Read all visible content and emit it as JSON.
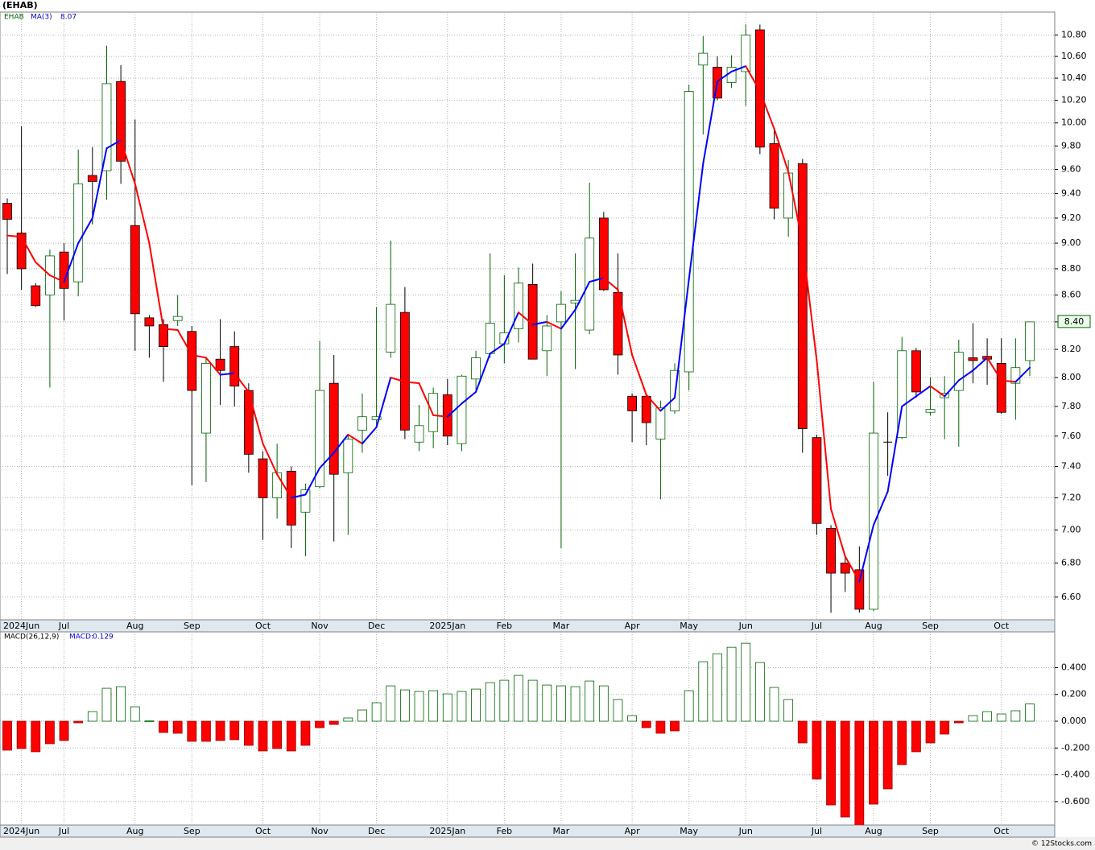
{
  "chart_data": [
    {
      "type": "candlestick",
      "title": "(EHAB)",
      "name": "EHAB",
      "categories": [
        null,
        "2024Jun",
        null,
        null,
        "Jul",
        null,
        null,
        null,
        null,
        "Aug",
        null,
        null,
        null,
        "Sep",
        null,
        null,
        null,
        null,
        "Oct",
        null,
        null,
        null,
        "Nov",
        null,
        null,
        null,
        "Dec",
        null,
        null,
        null,
        null,
        "2025Jan",
        null,
        null,
        null,
        "Feb",
        null,
        null,
        null,
        "Mar",
        null,
        null,
        null,
        null,
        "Apr",
        null,
        null,
        null,
        "May",
        null,
        null,
        null,
        "Jun",
        null,
        null,
        null,
        null,
        "Jul",
        null,
        null,
        null,
        "Aug",
        null,
        null,
        null,
        "Sep",
        null,
        null,
        null,
        null,
        "Oct",
        null,
        null
      ],
      "open": [
        9.32,
        9.08,
        8.67,
        8.6,
        8.93,
        8.7,
        9.55,
        9.59,
        10.37,
        9.14,
        8.43,
        8.38,
        8.41,
        8.33,
        7.62,
        8.13,
        8.22,
        7.91,
        7.45,
        7.2,
        7.37,
        7.11,
        7.27,
        7.96,
        7.36,
        7.64,
        7.71,
        8.18,
        8.47,
        7.56,
        7.63,
        7.88,
        7.55,
        7.99,
        8.17,
        8.24,
        8.35,
        8.68,
        8.19,
        8.4,
        8.54,
        8.34,
        9.2,
        8.62,
        7.87,
        7.87,
        7.58,
        7.77,
        8.04,
        10.52,
        10.5,
        10.36,
        10.46,
        10.85,
        9.82,
        9.2,
        9.65,
        7.59,
        7.01,
        6.8,
        6.76,
        6.53,
        7.56,
        7.59,
        8.19,
        7.76,
        7.86,
        7.91,
        8.14,
        8.15,
        8.1,
        7.96,
        8.12
      ],
      "high": [
        9.36,
        9.97,
        8.69,
        8.95,
        9.0,
        9.77,
        9.79,
        10.7,
        10.52,
        10.03,
        8.45,
        8.42,
        8.6,
        8.37,
        8.14,
        8.42,
        8.33,
        7.96,
        7.5,
        7.55,
        7.4,
        7.29,
        8.26,
        8.16,
        7.61,
        7.89,
        8.51,
        9.02,
        8.66,
        7.81,
        7.93,
        7.99,
        8.02,
        8.19,
        8.92,
        8.75,
        8.81,
        8.84,
        8.45,
        8.63,
        8.92,
        9.49,
        9.25,
        8.92,
        7.89,
        7.89,
        7.84,
        8.1,
        10.34,
        10.79,
        10.6,
        10.61,
        10.9,
        10.9,
        9.95,
        9.68,
        9.69,
        7.61,
        7.03,
        6.84,
        6.9,
        7.97,
        7.76,
        8.29,
        8.21,
        8.0,
        8.01,
        8.27,
        8.39,
        8.28,
        8.28,
        8.28,
        8.4
      ],
      "low": [
        8.76,
        8.64,
        8.51,
        7.93,
        8.41,
        8.59,
        9.15,
        9.35,
        9.48,
        8.19,
        8.14,
        7.97,
        8.37,
        7.28,
        7.3,
        7.81,
        7.8,
        7.36,
        6.94,
        7.07,
        6.89,
        6.84,
        7.26,
        6.93,
        6.97,
        7.49,
        7.66,
        8.14,
        7.58,
        7.5,
        7.52,
        7.54,
        7.5,
        7.9,
        8.14,
        8.1,
        8.25,
        8.13,
        8.01,
        6.89,
        8.06,
        8.31,
        8.63,
        8.02,
        7.56,
        7.54,
        7.19,
        7.75,
        7.91,
        9.9,
        10.2,
        10.31,
        10.15,
        9.73,
        9.19,
        9.05,
        7.49,
        6.97,
        6.51,
        6.63,
        6.51,
        6.52,
        7.34,
        7.58,
        7.86,
        7.74,
        7.58,
        7.53,
        7.96,
        7.95,
        7.75,
        7.71,
        8.01
      ],
      "close": [
        9.19,
        8.8,
        8.52,
        8.9,
        8.65,
        9.48,
        9.5,
        10.35,
        9.67,
        8.46,
        8.37,
        8.22,
        8.44,
        7.91,
        8.1,
        8.05,
        7.94,
        7.48,
        7.2,
        7.36,
        7.03,
        7.25,
        7.91,
        7.35,
        7.58,
        7.73,
        7.73,
        8.53,
        7.64,
        7.67,
        7.89,
        7.6,
        8.01,
        8.14,
        8.39,
        8.32,
        8.69,
        8.13,
        8.37,
        8.53,
        8.56,
        9.04,
        8.64,
        8.16,
        7.77,
        7.69,
        7.79,
        8.05,
        10.28,
        10.63,
        10.22,
        10.5,
        10.8,
        9.79,
        9.28,
        9.57,
        7.65,
        7.04,
        6.74,
        6.74,
        6.53,
        7.62,
        7.56,
        8.19,
        7.9,
        7.78,
        7.89,
        8.18,
        8.12,
        8.13,
        7.76,
        8.07,
        8.4
      ],
      "price_label": "8.40",
      "up_color": "#006400",
      "down_color": "#ff0000",
      "flat_color": "#000000",
      "ma": {
        "name": "MA(3)",
        "up_color": "#0000ff",
        "down_color": "#ff0000",
        "values": [
          9.06,
          9.05,
          8.85,
          8.75,
          8.7,
          9.0,
          9.2,
          9.78,
          9.85,
          9.48,
          9.0,
          8.35,
          8.34,
          8.16,
          8.14,
          8.02,
          8.03,
          7.9,
          7.55,
          7.35,
          7.2,
          7.22,
          7.39,
          7.49,
          7.61,
          7.55,
          7.66,
          8.0,
          7.97,
          7.96,
          7.74,
          7.73,
          7.82,
          7.9,
          8.17,
          8.24,
          8.47,
          8.38,
          8.4,
          8.35,
          8.49,
          8.7,
          8.73,
          8.64,
          8.16,
          7.88,
          7.77,
          7.86,
          8.72,
          9.65,
          10.37,
          10.46,
          10.51,
          10.28,
          9.95,
          9.58,
          9.0,
          8.12,
          7.13,
          6.84,
          6.69,
          7.03,
          7.24,
          7.8,
          7.87,
          7.94,
          7.87,
          7.98,
          8.05,
          8.14,
          7.98,
          7.97,
          8.07
        ]
      },
      "log": true,
      "grid": true,
      "ylim": [
        6.47,
        11.02
      ],
      "yticks": [
        {
          "value": 6.6,
          "label": "6.60"
        },
        {
          "value": 6.8,
          "label": "6.80"
        },
        {
          "value": 7,
          "label": "7.00"
        },
        {
          "value": 7.2,
          "label": "7.20"
        },
        {
          "value": 7.4,
          "label": "7.40"
        },
        {
          "value": 7.6,
          "label": "7.60"
        },
        {
          "value": 7.8,
          "label": "7.80"
        },
        {
          "value": 8,
          "label": "8.00"
        },
        {
          "value": 8.2,
          "label": "8.20"
        },
        {
          "value": 8.4,
          "label": "8.40"
        },
        {
          "value": 8.6,
          "label": "8.60"
        },
        {
          "value": 8.8,
          "label": "8.80"
        },
        {
          "value": 9,
          "label": "9.00"
        },
        {
          "value": 9.2,
          "label": "9.20"
        },
        {
          "value": 9.4,
          "label": "9.40"
        },
        {
          "value": 9.6,
          "label": "9.60"
        },
        {
          "value": 9.8,
          "label": "9.80"
        },
        {
          "value": 10,
          "label": "10.00"
        },
        {
          "value": 10.2,
          "label": "10.20"
        },
        {
          "value": 10.4,
          "label": "10.40"
        },
        {
          "value": 10.6,
          "label": "10.60"
        },
        {
          "value": 10.8,
          "label": "10.80"
        }
      ]
    },
    {
      "type": "bar",
      "name": "MACD(26,12,9)",
      "value_name": "MACD:",
      "categories": [
        null,
        "2024Jun",
        null,
        null,
        "Jul",
        null,
        null,
        null,
        null,
        "Aug",
        null,
        null,
        null,
        "Sep",
        null,
        null,
        null,
        null,
        "Oct",
        null,
        null,
        null,
        "Nov",
        null,
        null,
        null,
        "Dec",
        null,
        null,
        null,
        null,
        "2025Jan",
        null,
        null,
        null,
        "Feb",
        null,
        null,
        null,
        "Mar",
        null,
        null,
        null,
        null,
        "Apr",
        null,
        null,
        null,
        "May",
        null,
        null,
        null,
        "Jun",
        null,
        null,
        null,
        null,
        "Jul",
        null,
        null,
        null,
        "Aug",
        null,
        null,
        null,
        "Sep",
        null,
        null,
        null,
        null,
        "Oct",
        null,
        null
      ],
      "values": [
        -0.216,
        -0.204,
        -0.228,
        -0.168,
        -0.144,
        -0.012,
        0.072,
        0.246,
        0.258,
        0.108,
        0.003,
        -0.084,
        -0.09,
        -0.15,
        -0.15,
        -0.144,
        -0.138,
        -0.18,
        -0.222,
        -0.204,
        -0.222,
        -0.18,
        -0.048,
        -0.024,
        0.024,
        0.084,
        0.138,
        0.264,
        0.234,
        0.222,
        0.228,
        0.204,
        0.222,
        0.24,
        0.288,
        0.306,
        0.342,
        0.306,
        0.27,
        0.264,
        0.258,
        0.3,
        0.264,
        0.162,
        0.042,
        -0.048,
        -0.09,
        -0.072,
        0.228,
        0.444,
        0.504,
        0.552,
        0.582,
        0.438,
        0.252,
        0.162,
        -0.162,
        -0.432,
        -0.625,
        -0.715,
        -0.8,
        -0.619,
        -0.505,
        -0.324,
        -0.228,
        -0.162,
        -0.096,
        -0.012,
        0.042,
        0.072,
        0.054,
        0.078,
        0.129
      ],
      "pos_color": "#006400",
      "neg_color": "#ff0000",
      "grid": true,
      "ylim": [
        -0.775,
        0.667
      ],
      "yticks": [
        {
          "value": -0.6,
          "label": "-0.600"
        },
        {
          "value": -0.4,
          "label": "-0.400"
        },
        {
          "value": -0.2,
          "label": "-0.200"
        },
        {
          "value": 0,
          "label": "0.000"
        },
        {
          "value": 0.2,
          "label": "0.200"
        },
        {
          "value": 0.4,
          "label": "0.400"
        }
      ]
    }
  ],
  "footer": "© 12Stocks.com"
}
